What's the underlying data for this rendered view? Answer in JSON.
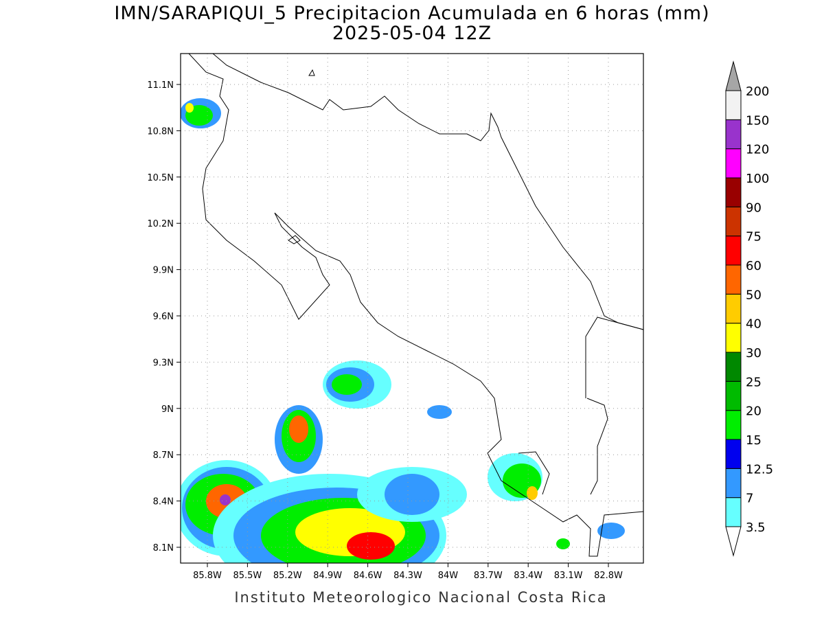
{
  "map": {
    "title": "IMN/SARAPIQUI_5 Precipitacion Acumulada en 6 horas (mm)",
    "subtitle": "2025-05-04 12Z",
    "lat_ticks": [
      "11.1N",
      "10.8N",
      "10.5N",
      "10.2N",
      "9.9N",
      "9.6N",
      "9.3N",
      "9N",
      "8.7N",
      "8.4N",
      "8.1N"
    ],
    "lon_ticks": [
      "85.8W",
      "85.5W",
      "85.2W",
      "84.9W",
      "84.6W",
      "84.3W",
      "84W",
      "83.7W",
      "83.4W",
      "83.1W",
      "82.8W"
    ],
    "colorbar": {
      "levels": [
        3.5,
        7,
        12.5,
        15,
        20,
        25,
        30,
        40,
        50,
        60,
        75,
        90,
        100,
        120,
        150,
        200
      ],
      "colors": [
        "#66ffff",
        "#3399ff",
        "#0000ee",
        "#00ee00",
        "#00bb00",
        "#008800",
        "#ffff00",
        "#ffcc00",
        "#ff6600",
        "#ff0000",
        "#cc3300",
        "#990000",
        "#ff00ff",
        "#9933cc",
        "#f2f2f2"
      ],
      "under_color": "#ffffff",
      "over_color": "#a6a6a6"
    },
    "credit": "Instituto Meteorologico Nacional Costa Rica"
  }
}
